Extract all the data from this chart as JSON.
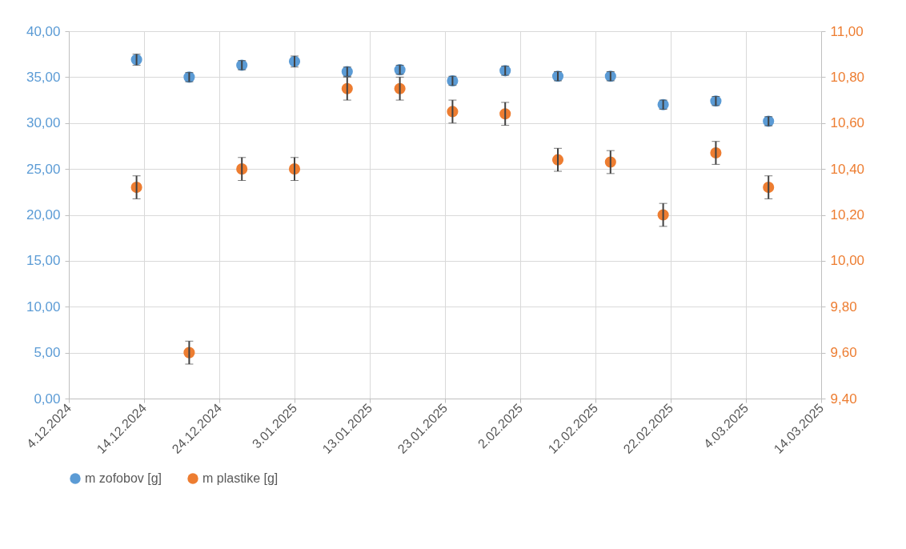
{
  "chart_data": {
    "type": "scatter",
    "x": [
      "2024-12-13",
      "2024-12-20",
      "2024-12-27",
      "2025-01-03",
      "2025-01-10",
      "2025-01-17",
      "2025-01-24",
      "2025-01-31",
      "2025-02-07",
      "2025-02-14",
      "2025-02-21",
      "2025-02-28",
      "2025-03-07"
    ],
    "series": [
      {
        "name": "m zofobov [g]",
        "color": "#5b9bd5",
        "values": [
          36.9,
          35.0,
          36.3,
          36.7,
          35.6,
          35.8,
          34.6,
          35.7,
          35.1,
          35.1,
          32.0,
          32.4,
          30.2
        ],
        "errors": [
          0.6,
          0.5,
          0.5,
          0.6,
          0.5,
          0.5,
          0.5,
          0.5,
          0.5,
          0.5,
          0.5,
          0.5,
          0.5
        ]
      },
      {
        "name": "m plastike [g]",
        "color": "#ed7d31",
        "axis": "y2",
        "values": [
          10.32,
          9.6,
          10.4,
          10.4,
          10.75,
          10.75,
          10.65,
          10.64,
          10.44,
          10.43,
          10.2,
          10.47,
          10.32
        ],
        "errors": [
          0.05,
          0.05,
          0.05,
          0.05,
          0.05,
          0.05,
          0.05,
          0.05,
          0.05,
          0.05,
          0.05,
          0.05,
          0.05
        ]
      }
    ],
    "xlim": [
      "2024-12-04",
      "2025-03-14"
    ],
    "xticks": [
      {
        "value": "2024-12-04",
        "label": "4.12.2024"
      },
      {
        "value": "2024-12-14",
        "label": "14.12.2024"
      },
      {
        "value": "2024-12-24",
        "label": "24.12.2024"
      },
      {
        "value": "2025-01-03",
        "label": "3.01.2025"
      },
      {
        "value": "2025-01-13",
        "label": "13.01.2025"
      },
      {
        "value": "2025-01-23",
        "label": "23.01.2025"
      },
      {
        "value": "2025-02-02",
        "label": "2.02.2025"
      },
      {
        "value": "2025-02-12",
        "label": "12.02.2025"
      },
      {
        "value": "2025-02-22",
        "label": "22.02.2025"
      },
      {
        "value": "2025-03-04",
        "label": "4.03.2025"
      },
      {
        "value": "2025-03-14",
        "label": "14.03.2025"
      }
    ],
    "ylim": [
      0,
      40
    ],
    "yticks": [
      {
        "value": 0,
        "label": "0,00"
      },
      {
        "value": 5,
        "label": "5,00"
      },
      {
        "value": 10,
        "label": "10,00"
      },
      {
        "value": 15,
        "label": "15,00"
      },
      {
        "value": 20,
        "label": "20,00"
      },
      {
        "value": 25,
        "label": "25,00"
      },
      {
        "value": 30,
        "label": "30,00"
      },
      {
        "value": 35,
        "label": "35,00"
      },
      {
        "value": 40,
        "label": "40,00"
      }
    ],
    "y2lim": [
      9.4,
      11
    ],
    "y2ticks": [
      {
        "value": 9.4,
        "label": "9,40"
      },
      {
        "value": 9.6,
        "label": "9,60"
      },
      {
        "value": 9.8,
        "label": "9,80"
      },
      {
        "value": 10,
        "label": "10,00"
      },
      {
        "value": 10.2,
        "label": "10,20"
      },
      {
        "value": 10.4,
        "label": "10,40"
      },
      {
        "value": 10.6,
        "label": "10,60"
      },
      {
        "value": 10.8,
        "label": "10,80"
      },
      {
        "value": 11,
        "label": "11,00"
      }
    ],
    "grid": true,
    "legend": "bottom",
    "marker": "circle"
  }
}
